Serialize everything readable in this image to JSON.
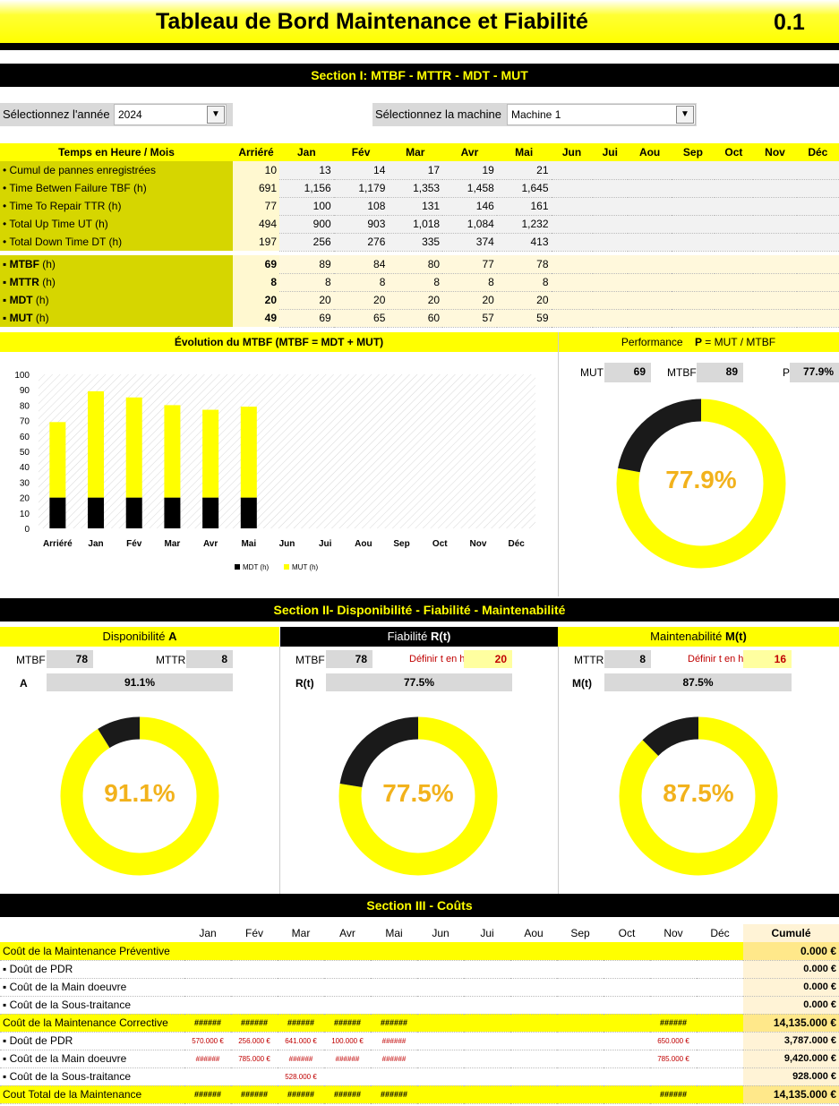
{
  "header": {
    "title": "Tableau de Bord Maintenance et Fiabilité",
    "version": "0.1"
  },
  "section1": {
    "title": "Section I:  MTBF - MTTR - MDT - MUT"
  },
  "selectors": {
    "year_label": "Sélectionnez l'année",
    "year_value": "2024",
    "machine_label": "Sélectionnez la machine",
    "machine_value": "Machine 1"
  },
  "kpi_table": {
    "corner": "Temps en Heure / Mois",
    "arriere": "Arriéré",
    "months": [
      "Jan",
      "Fév",
      "Mar",
      "Avr",
      "Mai",
      "Jun",
      "Jui",
      "Aou",
      "Sep",
      "Oct",
      "Nov",
      "Déc"
    ],
    "rows": [
      {
        "label": "• Cumul de pannes enregistrées",
        "arr": "10",
        "vals": [
          "13",
          "14",
          "17",
          "19",
          "21"
        ]
      },
      {
        "label": "• Time Betwen Failure TBF (h)",
        "arr": "691",
        "vals": [
          "1,156",
          "1,179",
          "1,353",
          "1,458",
          "1,645"
        ]
      },
      {
        "label": "• Time To Repair TTR (h)",
        "arr": "77",
        "vals": [
          "100",
          "108",
          "131",
          "146",
          "161"
        ]
      },
      {
        "label": "• Total Up Time UT (h)",
        "arr": "494",
        "vals": [
          "900",
          "903",
          "1,018",
          "1,084",
          "1,232"
        ]
      },
      {
        "label": "• Total Down Time DT (h)",
        "arr": "197",
        "vals": [
          "256",
          "276",
          "335",
          "374",
          "413"
        ]
      }
    ],
    "rows2": [
      {
        "name": "▪ MTBF",
        "unit": " (h)",
        "arr": "69",
        "vals": [
          "89",
          "84",
          "80",
          "77",
          "78"
        ]
      },
      {
        "name": "▪ MTTR",
        "unit": " (h)",
        "arr": "8",
        "vals": [
          "8",
          "8",
          "8",
          "8",
          "8"
        ]
      },
      {
        "name": "▪ MDT",
        "unit": " (h)",
        "arr": "20",
        "vals": [
          "20",
          "20",
          "20",
          "20",
          "20"
        ]
      },
      {
        "name": "▪ MUT",
        "unit": " (h)",
        "arr": "49",
        "vals": [
          "69",
          "65",
          "60",
          "57",
          "59"
        ]
      }
    ]
  },
  "evolution": {
    "title": "Évolution du MTBF  (MTBF = MDT + MUT)"
  },
  "chart_data": [
    {
      "type": "bar",
      "stacked": true,
      "categories": [
        "Arriéré",
        "Jan",
        "Fév",
        "Mar",
        "Avr",
        "Mai",
        "Jun",
        "Jui",
        "Aou",
        "Sep",
        "Oct",
        "Nov",
        "Déc"
      ],
      "series": [
        {
          "name": "MDT (h)",
          "color": "#000000",
          "values": [
            20,
            20,
            20,
            20,
            20,
            20,
            null,
            null,
            null,
            null,
            null,
            null,
            null
          ]
        },
        {
          "name": "MUT (h)",
          "color": "#ffff00",
          "values": [
            49,
            69,
            65,
            60,
            57,
            59,
            null,
            null,
            null,
            null,
            null,
            null,
            null
          ]
        }
      ],
      "yticks": [
        "100",
        "90",
        "80",
        "70",
        "60",
        "50",
        "40",
        "30",
        "20",
        "10",
        "0"
      ],
      "ylim": [
        0,
        100
      ],
      "legend": "bottom"
    },
    {
      "type": "pie",
      "donut": true,
      "values": [
        77.9,
        22.1
      ],
      "colors": [
        "#ffff00",
        "#1a1a1a"
      ]
    },
    {
      "type": "pie",
      "donut": true,
      "values": [
        91.1,
        8.9
      ],
      "colors": [
        "#ffff00",
        "#1a1a1a"
      ]
    },
    {
      "type": "pie",
      "donut": true,
      "values": [
        77.5,
        22.5
      ],
      "colors": [
        "#ffff00",
        "#1a1a1a"
      ]
    },
    {
      "type": "pie",
      "donut": true,
      "values": [
        87.5,
        12.5
      ],
      "colors": [
        "#ffff00",
        "#1a1a1a"
      ]
    }
  ],
  "performance": {
    "title_pre": "Performance",
    "title_p": "P",
    "title_post": " = MUT / MTBF",
    "mut_label": "MUT",
    "mut_value": "69",
    "mtbf_label": "MTBF",
    "mtbf_value": "89",
    "p_label": "P",
    "p_value": "77.9%",
    "pct": "77.9%"
  },
  "section2": {
    "title": "Section II-  Disponibilité - Fiabilité - Maintenabilité"
  },
  "dispo": {
    "title": "Disponibilité",
    "sym": "A",
    "mtbf_label": "MTBF",
    "mtbf_value": "78",
    "mttr_label": "MTTR",
    "mttr_value": "8",
    "a_label": "A",
    "a_value": "91.1%",
    "pct": "91.1%"
  },
  "fiab": {
    "title": "Fiabilité",
    "sym": "R(t)",
    "mtbf_label": "MTBF",
    "mtbf_value": "78",
    "t_label": "Définir t en h",
    "t_value": "20",
    "r_label": "R(t)",
    "r_value": "77.5%",
    "pct": "77.5%"
  },
  "maint": {
    "title": "Maintenabilité",
    "sym": "M(t)",
    "mttr_label": "MTTR",
    "mttr_value": "8",
    "t_label": "Définir t en h",
    "t_value": "16",
    "m_label": "M(t)",
    "m_value": "87.5%",
    "pct": "87.5%"
  },
  "section3": {
    "title": "Section III - Coûts"
  },
  "costs": {
    "months": [
      "Jan",
      "Fév",
      "Mar",
      "Avr",
      "Mai",
      "Jun",
      "Jui",
      "Aou",
      "Sep",
      "Oct",
      "Nov",
      "Déc"
    ],
    "cumul_label": "Cumulé",
    "rows": [
      {
        "label": "Coût de la Maintenance Préventive",
        "yellow": true,
        "vals": [
          "",
          "",
          "",
          "",
          "",
          "",
          "",
          "",
          "",
          "",
          "",
          ""
        ],
        "cumul": "0.000 €"
      },
      {
        "label": "▪ Doût de PDR",
        "vals": [
          "",
          "",
          "",
          "",
          "",
          "",
          "",
          "",
          "",
          "",
          "",
          ""
        ],
        "cumul": "0.000 €"
      },
      {
        "label": "▪ Coût de la Main doeuvre",
        "vals": [
          "",
          "",
          "",
          "",
          "",
          "",
          "",
          "",
          "",
          "",
          "",
          ""
        ],
        "cumul": "0.000 €"
      },
      {
        "label": "▪ Coût de la Sous-traitance",
        "vals": [
          "",
          "",
          "",
          "",
          "",
          "",
          "",
          "",
          "",
          "",
          "",
          ""
        ],
        "cumul": "0.000 €"
      },
      {
        "label": "Coût de la Maintenance Corrective",
        "yellow": true,
        "vals": [
          "######",
          "######",
          "######",
          "######",
          "######",
          "",
          "",
          "",
          "",
          "",
          "######",
          ""
        ],
        "cumul": "14,135.000 €"
      },
      {
        "label": "▪ Doût de PDR",
        "red": true,
        "vals": [
          "570.000 €",
          "256.000 €",
          "641.000 €",
          "100.000 €",
          "######",
          "",
          "",
          "",
          "",
          "",
          "650.000 €",
          ""
        ],
        "cumul": "3,787.000 €"
      },
      {
        "label": "▪ Coût de la Main doeuvre",
        "red": true,
        "vals": [
          "######",
          "785.000 €",
          "######",
          "######",
          "######",
          "",
          "",
          "",
          "",
          "",
          "785.000 €",
          ""
        ],
        "cumul": "9,420.000 €"
      },
      {
        "label": "▪ Coût de la Sous-traitance",
        "red": true,
        "vals": [
          "",
          "",
          "528.000 €",
          "",
          "",
          "",
          "",
          "",
          "",
          "",
          "",
          ""
        ],
        "cumul": "928.000 €"
      },
      {
        "label": "Cout Total de la Maintenance",
        "yellow": true,
        "vals": [
          "######",
          "######",
          "######",
          "######",
          "######",
          "",
          "",
          "",
          "",
          "",
          "######",
          ""
        ],
        "cumul": "14,135.000 €"
      }
    ]
  }
}
